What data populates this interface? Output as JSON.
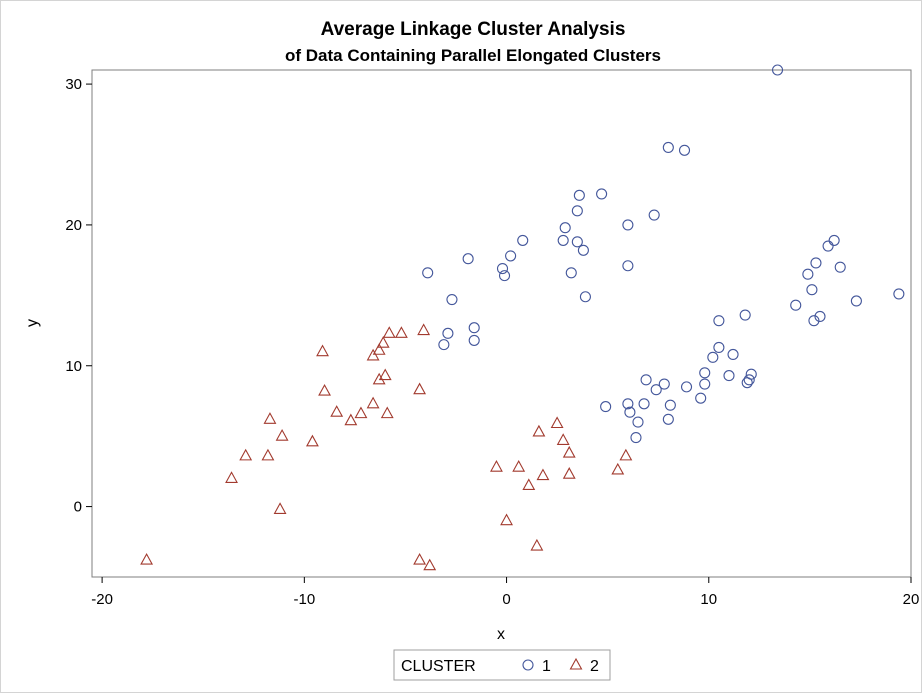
{
  "chart_data": {
    "type": "scatter",
    "title": "Average Linkage Cluster Analysis",
    "subtitle": "of Data Containing Parallel Elongated Clusters",
    "xlabel": "x",
    "ylabel": "y",
    "xlim": [
      -20.5,
      20
    ],
    "ylim": [
      -5,
      31
    ],
    "xticks": [
      -20,
      -10,
      0,
      10,
      20
    ],
    "xtick_labels": [
      "-20",
      "-10",
      "0",
      "10",
      "20"
    ],
    "yticks": [
      0,
      10,
      20,
      30
    ],
    "ytick_labels": [
      "0",
      "10",
      "20",
      "30"
    ],
    "legend": {
      "title": "CLUSTER",
      "placement": "bottom",
      "entries": [
        {
          "label": "1",
          "marker": "circle",
          "color": "#44579b"
        },
        {
          "label": "2",
          "marker": "triangle",
          "color": "#a23a2e"
        }
      ]
    },
    "series": [
      {
        "name": "1",
        "marker": "circle",
        "color": "#44579b",
        "points": [
          [
            13.4,
            31.0
          ],
          [
            8.0,
            25.5
          ],
          [
            8.8,
            25.3
          ],
          [
            4.7,
            22.2
          ],
          [
            3.6,
            22.1
          ],
          [
            3.5,
            21.0
          ],
          [
            7.3,
            20.7
          ],
          [
            6.0,
            20.0
          ],
          [
            2.9,
            19.8
          ],
          [
            0.8,
            18.9
          ],
          [
            2.8,
            18.9
          ],
          [
            3.5,
            18.8
          ],
          [
            3.8,
            18.2
          ],
          [
            0.2,
            17.8
          ],
          [
            -1.9,
            17.6
          ],
          [
            6.0,
            17.1
          ],
          [
            -0.2,
            16.9
          ],
          [
            -0.1,
            16.4
          ],
          [
            -3.9,
            16.6
          ],
          [
            3.2,
            16.6
          ],
          [
            3.9,
            14.9
          ],
          [
            -2.7,
            14.7
          ],
          [
            -1.6,
            12.7
          ],
          [
            -2.9,
            12.3
          ],
          [
            -1.6,
            11.8
          ],
          [
            -3.1,
            11.5
          ],
          [
            16.2,
            18.9
          ],
          [
            15.9,
            18.5
          ],
          [
            15.3,
            17.3
          ],
          [
            16.5,
            17.0
          ],
          [
            14.9,
            16.5
          ],
          [
            15.1,
            15.4
          ],
          [
            19.4,
            15.1
          ],
          [
            17.3,
            14.6
          ],
          [
            14.3,
            14.3
          ],
          [
            11.8,
            13.6
          ],
          [
            15.5,
            13.5
          ],
          [
            10.5,
            13.2
          ],
          [
            15.2,
            13.2
          ],
          [
            10.5,
            11.3
          ],
          [
            11.2,
            10.8
          ],
          [
            10.2,
            10.6
          ],
          [
            9.8,
            9.5
          ],
          [
            11.0,
            9.3
          ],
          [
            12.1,
            9.4
          ],
          [
            12.0,
            9.0
          ],
          [
            6.9,
            9.0
          ],
          [
            11.9,
            8.8
          ],
          [
            7.8,
            8.7
          ],
          [
            9.8,
            8.7
          ],
          [
            8.9,
            8.5
          ],
          [
            7.4,
            8.3
          ],
          [
            9.6,
            7.7
          ],
          [
            8.1,
            7.2
          ],
          [
            6.8,
            7.3
          ],
          [
            6.0,
            7.3
          ],
          [
            4.9,
            7.1
          ],
          [
            6.1,
            6.7
          ],
          [
            8.0,
            6.2
          ],
          [
            6.5,
            6.0
          ],
          [
            6.4,
            4.9
          ]
        ]
      },
      {
        "name": "2",
        "marker": "triangle",
        "color": "#a23a2e",
        "points": [
          [
            -5.8,
            12.3
          ],
          [
            -5.2,
            12.3
          ],
          [
            -4.1,
            12.5
          ],
          [
            -6.1,
            11.6
          ],
          [
            -6.3,
            11.1
          ],
          [
            -9.1,
            11.0
          ],
          [
            -6.6,
            10.7
          ],
          [
            -6.0,
            9.3
          ],
          [
            -6.3,
            9.0
          ],
          [
            -4.3,
            8.3
          ],
          [
            -9.0,
            8.2
          ],
          [
            -6.6,
            7.3
          ],
          [
            -8.4,
            6.7
          ],
          [
            -7.2,
            6.6
          ],
          [
            -5.9,
            6.6
          ],
          [
            -7.7,
            6.1
          ],
          [
            -11.7,
            6.2
          ],
          [
            -11.1,
            5.0
          ],
          [
            -9.6,
            4.6
          ],
          [
            -12.9,
            3.6
          ],
          [
            -11.8,
            3.6
          ],
          [
            -13.6,
            2.0
          ],
          [
            -11.2,
            -0.2
          ],
          [
            -17.8,
            -3.8
          ],
          [
            -4.3,
            -3.8
          ],
          [
            -3.8,
            -4.2
          ],
          [
            2.5,
            5.9
          ],
          [
            1.6,
            5.3
          ],
          [
            2.8,
            4.7
          ],
          [
            3.1,
            3.8
          ],
          [
            5.9,
            3.6
          ],
          [
            -0.5,
            2.8
          ],
          [
            0.6,
            2.8
          ],
          [
            5.5,
            2.6
          ],
          [
            3.1,
            2.3
          ],
          [
            1.8,
            2.2
          ],
          [
            1.1,
            1.5
          ],
          [
            0.0,
            -1.0
          ],
          [
            1.5,
            -2.8
          ]
        ]
      }
    ]
  }
}
